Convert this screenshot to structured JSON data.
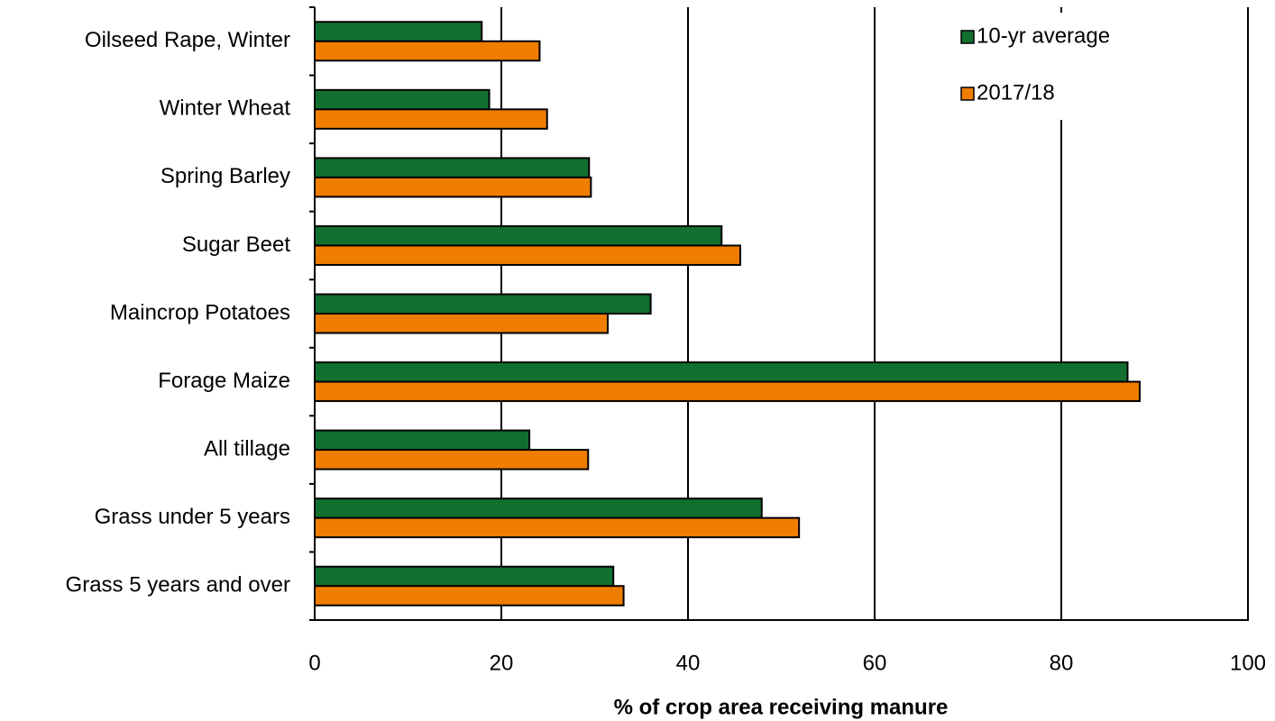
{
  "chart_data": {
    "type": "hbar",
    "x_label": "% of crop area receiving manure",
    "categories": [
      "Oilseed Rape, Winter",
      "Winter Wheat",
      "Spring Barley",
      "Sugar Beet",
      "Maincrop Potatoes",
      "Forage Maize",
      "All tillage",
      "Grass under 5 years",
      "Grass 5 years and over"
    ],
    "series": [
      {
        "name": "10-yr average",
        "color": "#11702f",
        "values": [
          17.9,
          18.7,
          29.4,
          43.6,
          36.0,
          87.1,
          23.0,
          47.9,
          32.0
        ]
      },
      {
        "name": "2017/18",
        "color": "#ef7d00",
        "values": [
          24.1,
          24.9,
          29.6,
          45.6,
          31.4,
          88.4,
          29.3,
          51.9,
          33.1
        ]
      }
    ],
    "xlim": [
      0,
      100
    ],
    "xticks": [
      0,
      20,
      40,
      60,
      80,
      100
    ],
    "grid": true,
    "legend": "upper right"
  }
}
